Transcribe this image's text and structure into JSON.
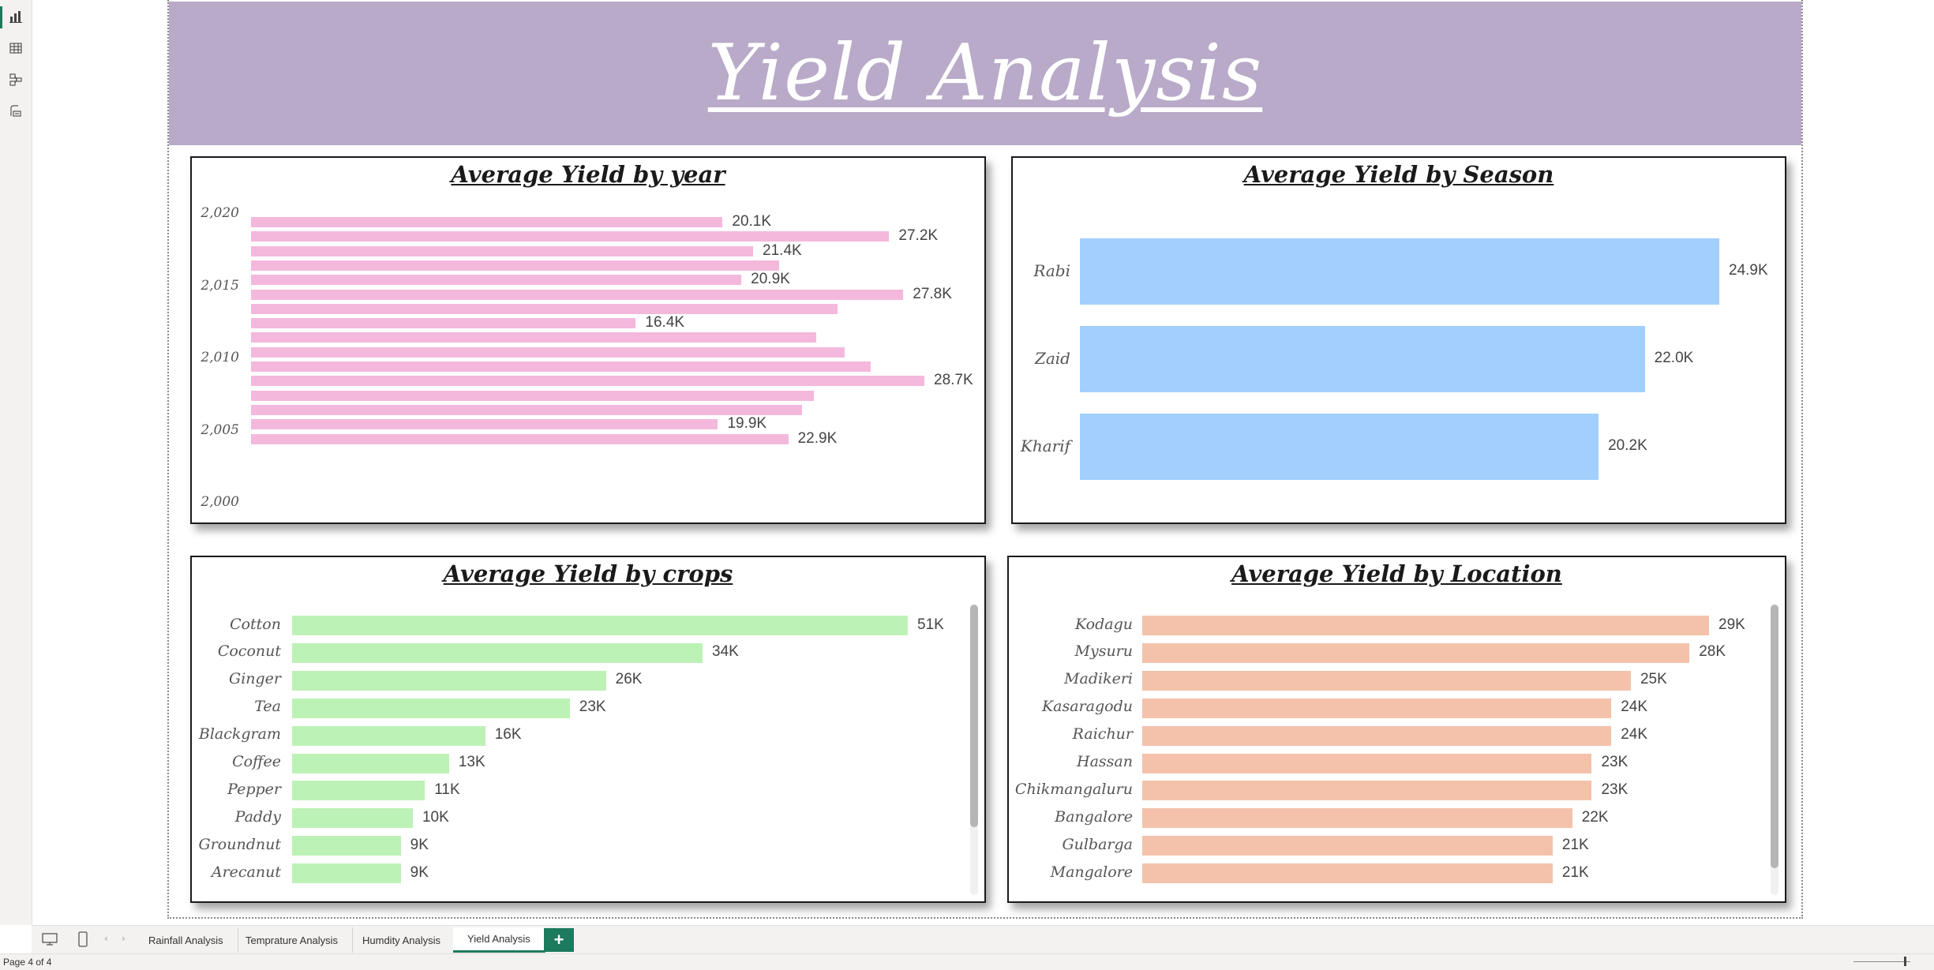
{
  "banner": {
    "title": "Yield Analysis"
  },
  "sheet_tabs": [
    {
      "label": "Rainfall Analysis",
      "active": false
    },
    {
      "label": "Temprature Analysis",
      "active": false
    },
    {
      "label": "Humdity Analysis",
      "active": false
    },
    {
      "label": "Yield Analysis",
      "active": true
    }
  ],
  "add_tab_label": "+",
  "status": {
    "page_text": "Page 4 of 4"
  },
  "icons": [
    "report-view-icon",
    "table-view-icon",
    "model-view-icon",
    "dax-query-icon",
    "desktop-layout-icon",
    "mobile-layout-icon",
    "prev-page-icon",
    "next-page-icon"
  ],
  "colors": {
    "accent": "#1c7a5d",
    "banner": "#b8aac8",
    "year_bar": "#f4b8dd",
    "season_bar": "#a2cffe",
    "crop_bar": "#bdf2b6",
    "location_bar": "#f4c2ab"
  },
  "chart_data": [
    {
      "id": "year",
      "type": "bar",
      "orientation": "horizontal",
      "title": "Average Yield by year",
      "tick_labels": [
        "2,020",
        "2,015",
        "2,010",
        "2,005",
        "2,000"
      ],
      "x": [
        2020,
        2019,
        2018,
        2017,
        2016,
        2015,
        2014,
        2013,
        2012,
        2011,
        2010,
        2009,
        2008,
        2007,
        2006,
        2005
      ],
      "values": [
        20.1,
        27.2,
        21.4,
        22.5,
        20.9,
        27.8,
        25.0,
        16.4,
        24.1,
        25.3,
        26.4,
        28.7,
        24.0,
        23.5,
        19.9,
        22.9
      ],
      "data_labels": [
        "20.1K",
        "27.2K",
        "21.4K",
        "",
        "20.9K",
        "27.8K",
        "",
        "16.4K",
        "",
        "",
        "",
        "28.7K",
        "",
        "",
        "19.9K",
        "22.9K"
      ],
      "unit": "K"
    },
    {
      "id": "season",
      "type": "bar",
      "orientation": "horizontal",
      "title": "Average Yield by Season",
      "categories": [
        "Rabi",
        "Zaid",
        "Kharif"
      ],
      "values": [
        24.9,
        22.0,
        20.2
      ],
      "data_labels": [
        "24.9K",
        "22.0K",
        "20.2K"
      ],
      "unit": "K"
    },
    {
      "id": "crops",
      "type": "bar",
      "orientation": "horizontal",
      "title": "Average Yield by crops",
      "categories": [
        "Cotton",
        "Coconut",
        "Ginger",
        "Tea",
        "Blackgram",
        "Coffee",
        "Pepper",
        "Paddy",
        "Groundnut",
        "Arecanut"
      ],
      "values": [
        51,
        34,
        26,
        23,
        16,
        13,
        11,
        10,
        9,
        9
      ],
      "data_labels": [
        "51K",
        "34K",
        "26K",
        "23K",
        "16K",
        "13K",
        "11K",
        "10K",
        "9K",
        "9K"
      ],
      "unit": "K"
    },
    {
      "id": "location",
      "type": "bar",
      "orientation": "horizontal",
      "title": "Average Yield by Location",
      "categories": [
        "Kodagu",
        "Mysuru",
        "Madikeri",
        "Kasaragodu",
        "Raichur",
        "Hassan",
        "Chikmangaluru",
        "Bangalore",
        "Gulbarga",
        "Mangalore"
      ],
      "values": [
        29,
        28,
        25,
        24,
        24,
        23,
        23,
        22,
        21,
        21
      ],
      "data_labels": [
        "29K",
        "28K",
        "25K",
        "24K",
        "24K",
        "23K",
        "23K",
        "22K",
        "21K",
        "21K"
      ],
      "unit": "K"
    }
  ]
}
